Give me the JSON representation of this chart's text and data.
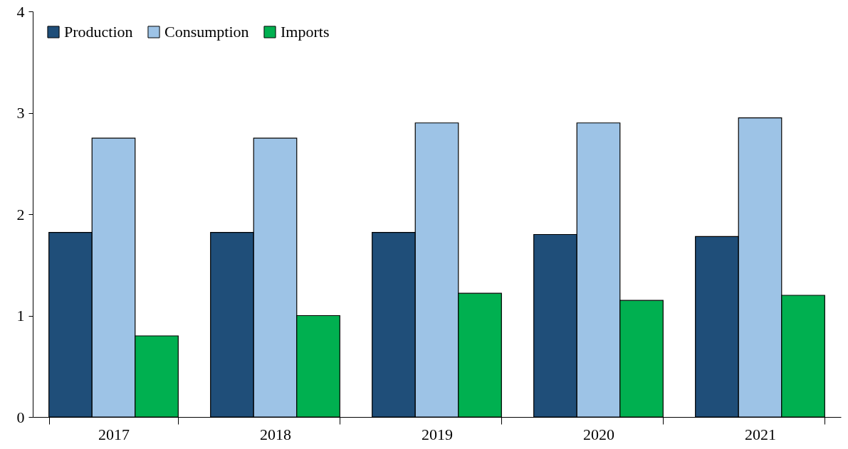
{
  "chart_data": {
    "type": "bar",
    "categories": [
      "2017",
      "2018",
      "2019",
      "2020",
      "2021"
    ],
    "series": [
      {
        "name": "Production",
        "color": "#1f4e79",
        "values": [
          1.82,
          1.82,
          1.82,
          1.8,
          1.78
        ]
      },
      {
        "name": "Consumption",
        "color": "#9dc3e6",
        "values": [
          2.75,
          2.75,
          2.9,
          2.9,
          2.95
        ]
      },
      {
        "name": "Imports",
        "color": "#00b050",
        "values": [
          0.8,
          1.0,
          1.22,
          1.15,
          1.2
        ]
      }
    ],
    "ylim": [
      0,
      4
    ],
    "yticks": [
      0,
      1,
      2,
      3,
      4
    ],
    "grid": false,
    "legend": "top left"
  }
}
